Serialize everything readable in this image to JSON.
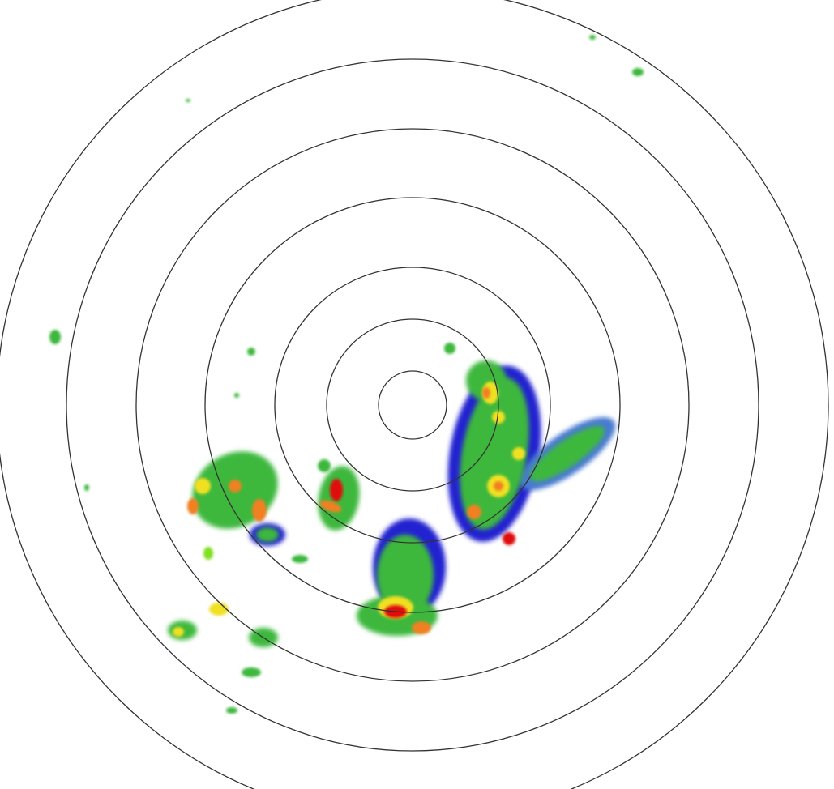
{
  "radar": {
    "range_ring_count": 7,
    "ring_color": "#333333",
    "background": "#ffffff",
    "reflectivity_colors": {
      "light": "#00c8ff",
      "weak": "#2020d0",
      "low": "#4a7ad0",
      "moderate": "#3cb83c",
      "bright": "#80e020",
      "heavy": "#f0e020",
      "intense": "#f08020",
      "extreme": "#e01010"
    }
  }
}
